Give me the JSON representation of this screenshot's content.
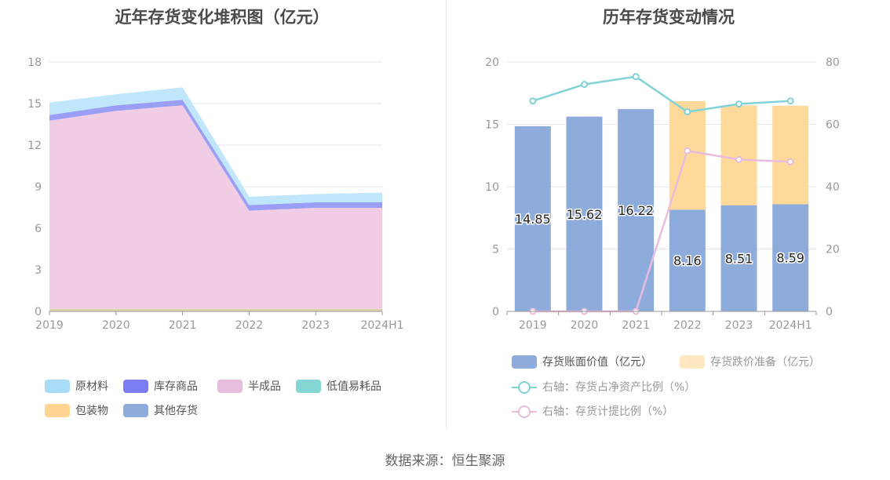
{
  "source_label": "数据来源：恒生聚源",
  "chart_data": [
    {
      "type": "area",
      "title": "近年存货变化堆积图（亿元）",
      "categories": [
        "2019",
        "2020",
        "2021",
        "2022",
        "2023",
        "2024H1"
      ],
      "y_ticks": [
        "0",
        "3",
        "6",
        "9",
        "12",
        "15",
        "18"
      ],
      "ylim": [
        0,
        18
      ],
      "stacked": true,
      "grid": true,
      "legend_position": "bottom",
      "series": [
        {
          "name": "其他存货",
          "color": "#8eacdb",
          "values": [
            0.05,
            0.05,
            0.05,
            0.05,
            0.05,
            0.05
          ]
        },
        {
          "name": "包装物",
          "color": "#ffd591",
          "values": [
            0.1,
            0.1,
            0.1,
            0.1,
            0.1,
            0.1
          ]
        },
        {
          "name": "低值易耗品",
          "color": "#83d6d3",
          "values": [
            0.02,
            0.02,
            0.02,
            0.02,
            0.02,
            0.02
          ]
        },
        {
          "name": "半成品",
          "color": "#f0cde4",
          "values": [
            13.6,
            14.3,
            14.7,
            7.1,
            7.3,
            7.3
          ]
        },
        {
          "name": "库存商品",
          "color": "#9a9ef5",
          "values": [
            0.4,
            0.4,
            0.4,
            0.4,
            0.4,
            0.4
          ]
        },
        {
          "name": "原材料",
          "color": "#bfe6fb",
          "values": [
            0.9,
            0.8,
            0.9,
            0.6,
            0.6,
            0.7
          ]
        }
      ],
      "legend": [
        {
          "name": "原材料",
          "color": "#a9dcf9"
        },
        {
          "name": "库存商品",
          "color": "#7b7ef2"
        },
        {
          "name": "半成品",
          "color": "#e8bcdc"
        },
        {
          "name": "低值易耗品",
          "color": "#83d6d3"
        },
        {
          "name": "包装物",
          "color": "#ffd591"
        },
        {
          "name": "其他存货",
          "color": "#8eacdb"
        }
      ]
    },
    {
      "type": "bar",
      "title": "历年存货变动情况",
      "categories": [
        "2019",
        "2020",
        "2021",
        "2022",
        "2023",
        "2024H1"
      ],
      "y_ticks": [
        "0",
        "5",
        "10",
        "15",
        "20"
      ],
      "ylim": [
        0,
        20
      ],
      "y2_ticks": [
        "0",
        "20",
        "40",
        "60",
        "80"
      ],
      "y2lim": [
        0,
        80
      ],
      "stacked": true,
      "grid": true,
      "legend_position": "bottom",
      "series": [
        {
          "name": "存货账面价值（亿元）",
          "color": "#8eacdb",
          "values": [
            14.85,
            15.62,
            16.22,
            8.16,
            8.51,
            8.59
          ],
          "labels": [
            "14.85",
            "15.62",
            "16.22",
            "8.16",
            "8.51",
            "8.59"
          ]
        },
        {
          "name": "存货跌价准备（亿元）",
          "color": "#ffd99a",
          "legend_color": "#ffe7c2",
          "values": [
            0,
            0,
            0,
            8.7,
            8.0,
            7.9
          ]
        }
      ],
      "line_series": [
        {
          "name": "右轴：存货占净资产比例（%）",
          "color": "#7fd3d6",
          "axis": "right",
          "values": [
            67.5,
            72.8,
            75.3,
            64.0,
            66.5,
            67.5
          ]
        },
        {
          "name": "右轴：存货计提比例（%）",
          "color": "#e8bcdc",
          "axis": "right",
          "values": [
            0,
            0,
            0,
            51.5,
            48.7,
            48.0
          ]
        }
      ]
    }
  ]
}
